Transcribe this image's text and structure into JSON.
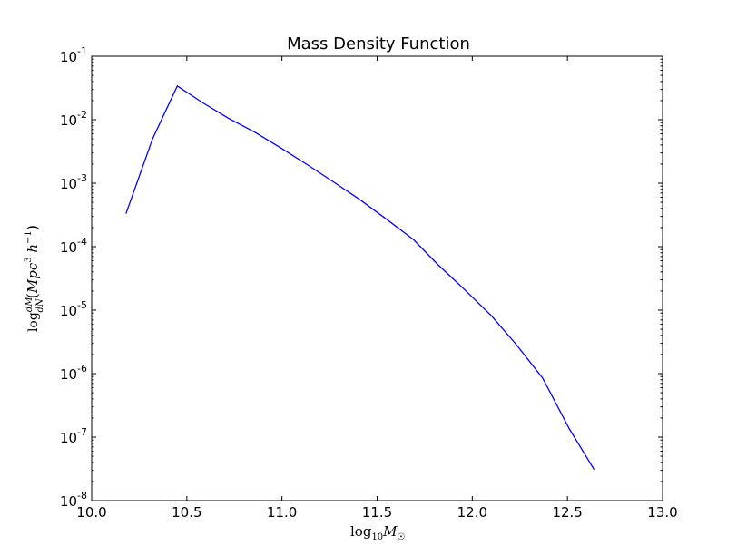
{
  "chart_data": {
    "type": "line",
    "title": "Mass Density Function",
    "xlabel": "log10 M⊙",
    "ylabel": "log dM/dN (Mpc³ h⁻¹)",
    "xlim": [
      10.0,
      13.0
    ],
    "ylim": [
      1e-08,
      0.1
    ],
    "yscale": "log",
    "grid": false,
    "legend": false,
    "x_ticks": [
      "10.0",
      "10.5",
      "11.0",
      "11.5",
      "12.0",
      "12.5",
      "13.0"
    ],
    "y_tick_mantissa": "10",
    "y_tick_exponents": [
      "-8",
      "-7",
      "-6",
      "-5",
      "-4",
      "-3",
      "-2",
      "-1"
    ],
    "series": [
      {
        "color": "#0000ff",
        "x": [
          10.18,
          10.32,
          10.45,
          10.59,
          10.72,
          10.86,
          11.0,
          11.14,
          11.27,
          11.41,
          11.55,
          11.69,
          11.82,
          11.96,
          12.1,
          12.23,
          12.37,
          12.51,
          12.64
        ],
        "y": [
          0.00033,
          0.005,
          0.034,
          0.018,
          0.0105,
          0.0063,
          0.0035,
          0.0019,
          0.00105,
          0.00055,
          0.00027,
          0.00013,
          5.2e-05,
          2.1e-05,
          8.2e-06,
          2.9e-06,
          8.5e-07,
          1.35e-07,
          3.1e-08
        ]
      }
    ]
  }
}
